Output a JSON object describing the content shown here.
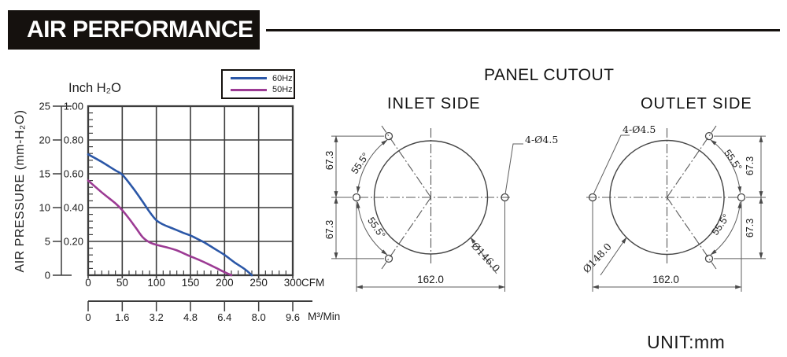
{
  "header": {
    "title": "AIR PERFORMANCE"
  },
  "footer": {
    "unit_label": "UNIT:mm"
  },
  "chart_data": {
    "type": "line",
    "title": "AIR PERFORMANCE",
    "grid": true,
    "legend_position": "top-right",
    "x_axis": {
      "label": "CFM",
      "range": [
        0,
        300
      ],
      "minor_step": 10,
      "ticks": [
        {
          "v": 0,
          "label": "0"
        },
        {
          "v": 50,
          "label": "50"
        },
        {
          "v": 100,
          "label": "100"
        },
        {
          "v": 150,
          "label": "150"
        },
        {
          "v": 200,
          "label": "200"
        },
        {
          "v": 250,
          "label": "250"
        },
        {
          "v": 300,
          "label": "300"
        }
      ]
    },
    "x_axis_secondary": {
      "label": "M³/Min",
      "ticks": [
        {
          "cfm": 0,
          "label": "0"
        },
        {
          "cfm": 50,
          "label": "1.6"
        },
        {
          "cfm": 100,
          "label": "3.2"
        },
        {
          "cfm": 150,
          "label": "4.8"
        },
        {
          "cfm": 200,
          "label": "6.4"
        },
        {
          "cfm": 250,
          "label": "8.0"
        },
        {
          "cfm": 300,
          "label": "9.6"
        }
      ]
    },
    "y_axis": {
      "label": "Inch H₂O",
      "range": [
        0,
        1.0
      ],
      "minor_step": 0.04,
      "ticks": [
        {
          "v": 1.0,
          "label": "1.00"
        },
        {
          "v": 0.8,
          "label": "0.80"
        },
        {
          "v": 0.6,
          "label": "0.60"
        },
        {
          "v": 0.4,
          "label": "0.40"
        },
        {
          "v": 0.2,
          "label": "0.20"
        }
      ]
    },
    "y_axis_secondary": {
      "label": "AIR PRESSURE  (mm-H₂O)",
      "range": [
        0,
        25
      ],
      "ticks": [
        {
          "v": 25,
          "label": "25"
        },
        {
          "v": 20,
          "label": "20"
        },
        {
          "v": 15,
          "label": "15"
        },
        {
          "v": 10,
          "label": "10"
        },
        {
          "v": 5,
          "label": "5"
        },
        {
          "v": 0,
          "label": "0"
        }
      ]
    },
    "series": [
      {
        "name": "60Hz",
        "color": "#2b57a7",
        "points": [
          [
            0,
            0.715
          ],
          [
            20,
            0.67
          ],
          [
            40,
            0.62
          ],
          [
            50,
            0.595
          ],
          [
            65,
            0.52
          ],
          [
            80,
            0.435
          ],
          [
            90,
            0.375
          ],
          [
            100,
            0.325
          ],
          [
            110,
            0.3
          ],
          [
            125,
            0.275
          ],
          [
            140,
            0.25
          ],
          [
            150,
            0.235
          ],
          [
            160,
            0.215
          ],
          [
            170,
            0.195
          ],
          [
            180,
            0.17
          ],
          [
            190,
            0.145
          ],
          [
            200,
            0.12
          ],
          [
            215,
            0.075
          ],
          [
            230,
            0.035
          ],
          [
            240,
            0
          ]
        ]
      },
      {
        "name": "50Hz",
        "color": "#9c3b94",
        "points": [
          [
            0,
            0.56
          ],
          [
            20,
            0.49
          ],
          [
            40,
            0.425
          ],
          [
            50,
            0.385
          ],
          [
            60,
            0.335
          ],
          [
            70,
            0.28
          ],
          [
            80,
            0.225
          ],
          [
            90,
            0.195
          ],
          [
            100,
            0.18
          ],
          [
            115,
            0.165
          ],
          [
            130,
            0.147
          ],
          [
            145,
            0.12
          ],
          [
            160,
            0.095
          ],
          [
            175,
            0.068
          ],
          [
            190,
            0.038
          ],
          [
            200,
            0.018
          ],
          [
            210,
            0
          ]
        ]
      }
    ]
  },
  "panel_cutout": {
    "title": "PANEL CUTOUT",
    "inlet": {
      "title": "INLET SIDE",
      "hole_spec": "4-Ø4.5",
      "cutout_diameter": "Ø146.0",
      "hole_spacing_h": "162.0",
      "hole_spacing_v_top": "67.3",
      "hole_spacing_v_bottom": "67.3",
      "angle_top": "55.5°",
      "angle_bottom": "55.5°"
    },
    "outlet": {
      "title": "OUTLET SIDE",
      "hole_spec": "4-Ø4.5",
      "cutout_diameter": "Ø148.0",
      "hole_spacing_h": "162.0",
      "hole_spacing_v_top": "67.3",
      "hole_spacing_v_bottom": "67.3",
      "angle_top": "55.5°",
      "angle_bottom": "55.5°"
    }
  }
}
